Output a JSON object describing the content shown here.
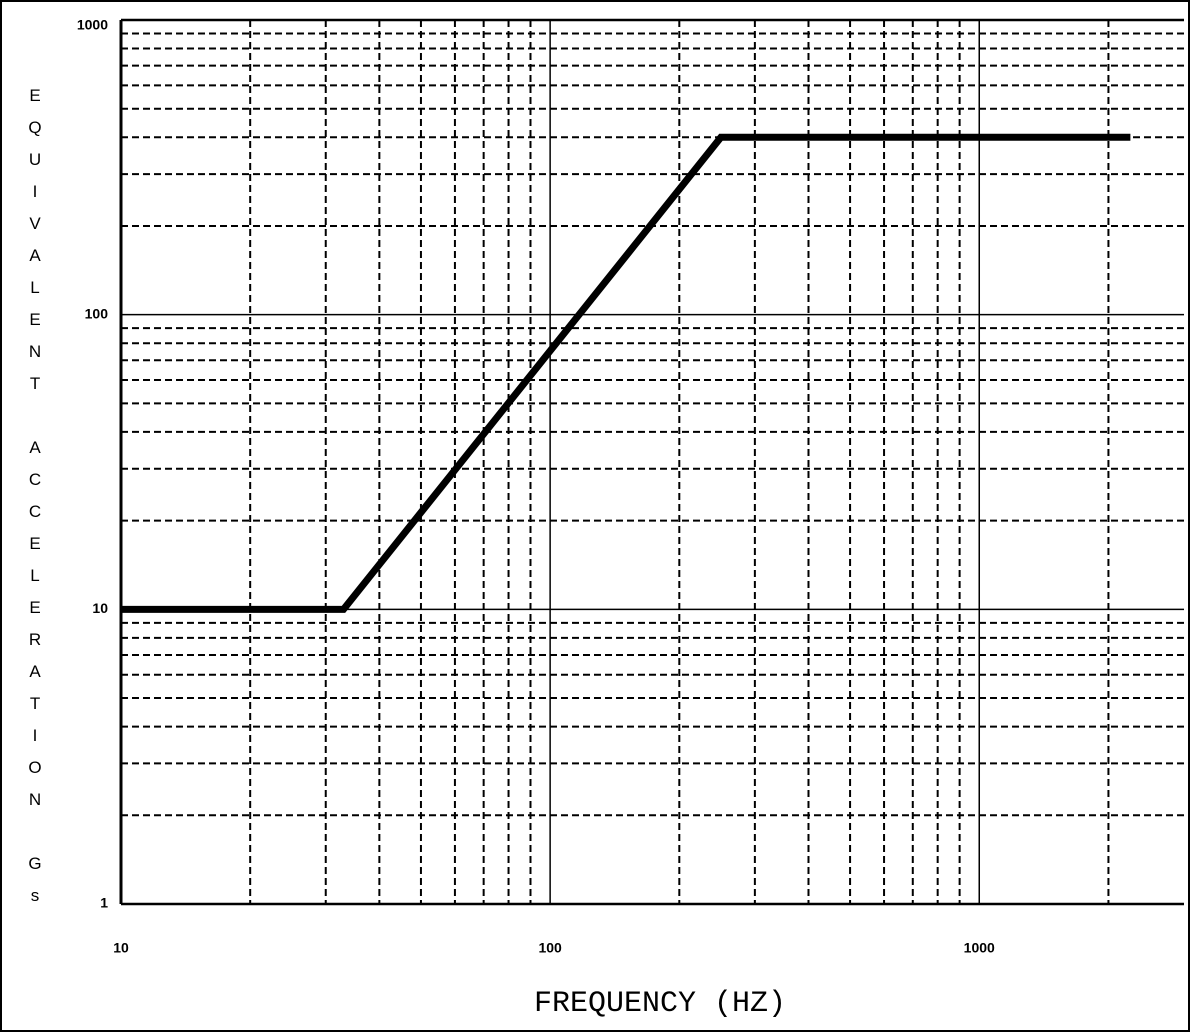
{
  "chart_data": {
    "type": "line",
    "x_label": "FREQUENCY (HZ)",
    "y_label": "EQUIVALENT ACCELERATION Gs",
    "x": [
      10,
      33,
      250,
      2250
    ],
    "series": [
      {
        "color": "#000000",
        "values": [
          10,
          10,
          400,
          400
        ]
      }
    ],
    "xscale": "log",
    "yscale": "log",
    "xlim": [
      10,
      3000
    ],
    "ylim": [
      1,
      1000
    ],
    "xticks": [
      10,
      100,
      1000
    ],
    "yticks": [
      1,
      10,
      100,
      1000
    ],
    "xminor": [
      20,
      30,
      40,
      50,
      60,
      70,
      80,
      90,
      200,
      300,
      400,
      500,
      600,
      700,
      800,
      900,
      2000
    ],
    "yminor": [
      2,
      3,
      4,
      5,
      6,
      7,
      8,
      9,
      20,
      30,
      40,
      50,
      60,
      70,
      80,
      90,
      200,
      300,
      400,
      500,
      600,
      700,
      800,
      900
    ],
    "grid": true
  }
}
